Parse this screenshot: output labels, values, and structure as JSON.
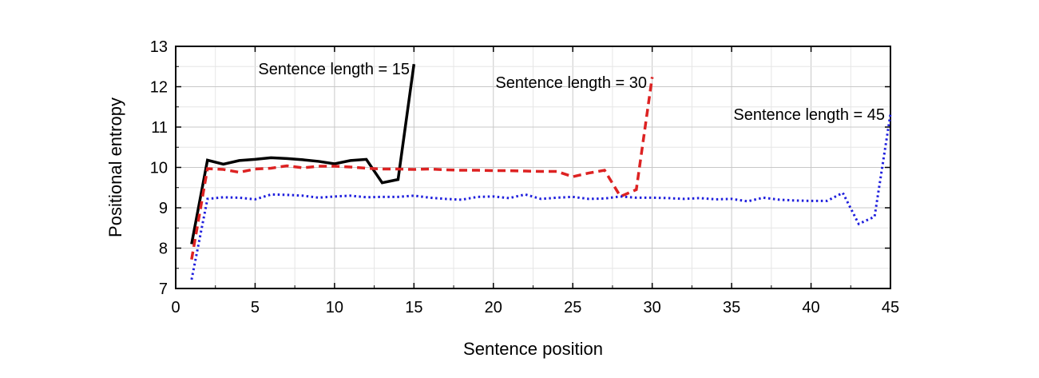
{
  "chart_data": {
    "type": "line",
    "xlabel": "Sentence position",
    "ylabel": "Positional entropy",
    "xlim": [
      0,
      45
    ],
    "ylim": [
      7,
      13
    ],
    "xticks": [
      0,
      5,
      10,
      15,
      20,
      25,
      30,
      35,
      40,
      45
    ],
    "yticks": [
      7,
      8,
      9,
      10,
      11,
      12,
      13
    ],
    "grid": true,
    "series": [
      {
        "name": "Sentence length = 15",
        "color": "#000000",
        "style": "solid",
        "x": [
          1,
          2,
          3,
          4,
          5,
          6,
          7,
          8,
          9,
          10,
          11,
          12,
          13,
          14,
          15
        ],
        "y": [
          8.1,
          10.18,
          10.08,
          10.17,
          10.2,
          10.24,
          10.22,
          10.19,
          10.15,
          10.09,
          10.17,
          10.2,
          9.62,
          9.7,
          12.56
        ]
      },
      {
        "name": "Sentence length = 30",
        "color": "#dd2222",
        "style": "dashed",
        "x": [
          1,
          2,
          3,
          4,
          5,
          6,
          7,
          8,
          9,
          10,
          11,
          12,
          13,
          14,
          15,
          16,
          17,
          18,
          19,
          20,
          21,
          22,
          23,
          24,
          25,
          26,
          27,
          28,
          29,
          30
        ],
        "y": [
          7.72,
          9.97,
          9.95,
          9.88,
          9.96,
          9.98,
          10.04,
          9.99,
          10.03,
          10.03,
          10.01,
          9.98,
          9.96,
          9.96,
          9.95,
          9.96,
          9.94,
          9.93,
          9.93,
          9.92,
          9.92,
          9.91,
          9.9,
          9.9,
          9.77,
          9.86,
          9.93,
          9.28,
          9.45,
          12.24
        ]
      },
      {
        "name": "Sentence length = 45",
        "color": "#1f1fdd",
        "style": "dotted",
        "x": [
          1,
          2,
          3,
          4,
          5,
          6,
          7,
          8,
          9,
          10,
          11,
          12,
          13,
          14,
          15,
          16,
          17,
          18,
          19,
          20,
          21,
          22,
          23,
          24,
          25,
          26,
          27,
          28,
          29,
          30,
          31,
          32,
          33,
          34,
          35,
          36,
          37,
          38,
          39,
          40,
          41,
          42,
          43,
          44,
          45
        ],
        "y": [
          7.22,
          9.22,
          9.26,
          9.25,
          9.21,
          9.33,
          9.32,
          9.3,
          9.25,
          9.28,
          9.3,
          9.26,
          9.27,
          9.27,
          9.3,
          9.25,
          9.22,
          9.2,
          9.27,
          9.28,
          9.24,
          9.33,
          9.22,
          9.25,
          9.27,
          9.22,
          9.23,
          9.28,
          9.25,
          9.25,
          9.24,
          9.22,
          9.24,
          9.21,
          9.22,
          9.16,
          9.25,
          9.2,
          9.18,
          9.17,
          9.17,
          9.37,
          8.6,
          8.78,
          11.32
        ]
      }
    ],
    "annotations": [
      {
        "text": "Sentence length = 15"
      },
      {
        "text": "Sentence length = 30"
      },
      {
        "text": "Sentence length = 45"
      }
    ]
  }
}
